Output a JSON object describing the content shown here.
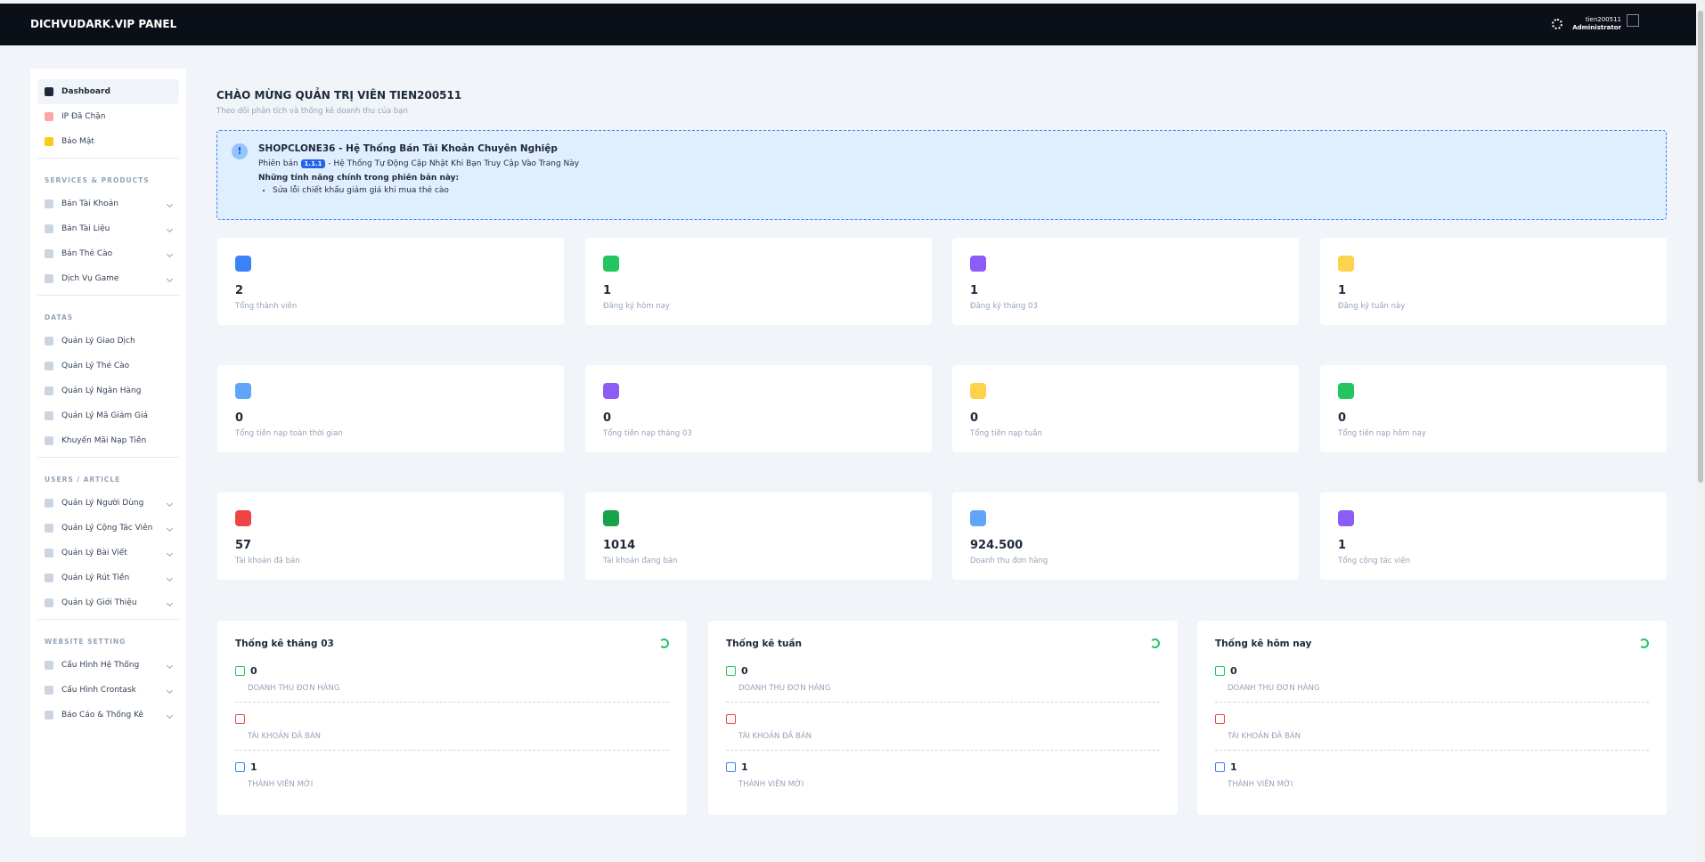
{
  "header": {
    "brand": "DICHVUDARK.VIP PANEL",
    "username": "tien200511",
    "role": "Administrator"
  },
  "sidebar": {
    "top": [
      "Dashboard",
      "IP Đã Chặn",
      "Bảo Mật"
    ],
    "sections": [
      {
        "title": "SERVICES & PRODUCTS",
        "items": [
          "Bán Tài Khoản",
          "Bán Tài Liệu",
          "Bán Thẻ Cào",
          "Dịch Vụ Game"
        ]
      },
      {
        "title": "DATAS",
        "items": [
          "Quản Lý Giao Dịch",
          "Quản Lý Thẻ Cào",
          "Quản Lý Ngân Hàng",
          "Quản Lý Mã Giảm Giá",
          "Khuyến Mãi Nạp Tiền"
        ]
      },
      {
        "title": "USERS / ARTICLE",
        "items": [
          "Quản Lý Người Dùng",
          "Quản Lý Cộng Tác Viên",
          "Quản Lý Bài Viết",
          "Quản Lý Rút Tiền",
          "Quản Lý Giới Thiệu"
        ]
      },
      {
        "title": "WEBSITE SETTING",
        "items": [
          "Cấu Hình Hệ Thống",
          "Cấu Hình Crontask",
          "Báo Cáo & Thống Kê"
        ]
      }
    ]
  },
  "page": {
    "title": "CHÀO MỪNG QUẢN TRỊ VIÊN TIEN200511",
    "subtitle": "Theo dõi phân tích và thống kê doanh thu của bạn"
  },
  "notice": {
    "title": "SHOPCLONE36 - Hệ Thống Bán Tài Khoản Chuyên Nghiệp",
    "version_prefix": "Phiên bản",
    "version": "1.1.1",
    "version_suffix": "- Hệ Thống Tự Động Cập Nhật Khi Bạn Truy Cập Vào Trang Này",
    "features_title": "Những tính năng chính trong phiên bản này:",
    "features": [
      "Sửa lỗi chiết khấu giảm giá khi mua thẻ cào"
    ]
  },
  "stats": [
    {
      "value": "2",
      "label": "Tổng thành viên"
    },
    {
      "value": "1",
      "label": "Đăng ký hôm nay"
    },
    {
      "value": "1",
      "label": "Đăng ký tháng 03"
    },
    {
      "value": "1",
      "label": "Đăng ký tuần này"
    },
    {
      "value": "0",
      "label": "Tổng tiền nạp toàn thời gian"
    },
    {
      "value": "0",
      "label": "Tổng tiền nạp tháng 03"
    },
    {
      "value": "0",
      "label": "Tổng tiền nạp tuần"
    },
    {
      "value": "0",
      "label": "Tổng tiền nạp hôm nay"
    },
    {
      "value": "57",
      "label": "Tài khoản đã bán"
    },
    {
      "value": "1014",
      "label": "Tài khoản đang bán"
    },
    {
      "value": "924.500",
      "label": "Doanh thu đơn hàng"
    },
    {
      "value": "1",
      "label": "Tổng cộng tác viên"
    }
  ],
  "panels": [
    {
      "title": "Thống kê tháng 03",
      "rows": [
        {
          "value": "0",
          "label": "DOANH THU ĐƠN HÀNG"
        },
        {
          "label": "TÀI KHOẢN ĐÃ BÁN"
        },
        {
          "value": "1",
          "label": "THÀNH VIÊN MỚI"
        }
      ]
    },
    {
      "title": "Thống kê tuần",
      "rows": [
        {
          "value": "0",
          "label": "DOANH THU ĐƠN HÀNG"
        },
        {
          "label": "TÀI KHOẢN ĐÃ BÁN"
        },
        {
          "value": "1",
          "label": "THÀNH VIÊN MỚI"
        }
      ]
    },
    {
      "title": "Thống kê hôm nay",
      "rows": [
        {
          "value": "0",
          "label": "DOANH THU ĐƠN HÀNG"
        },
        {
          "label": "TÀI KHOẢN ĐÃ BÁN"
        },
        {
          "value": "1",
          "label": "THÀNH VIÊN MỚI"
        }
      ]
    }
  ]
}
